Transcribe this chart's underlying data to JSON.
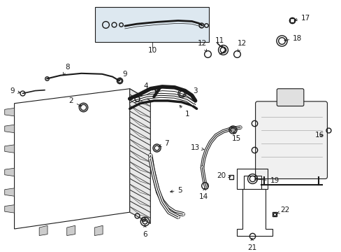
{
  "bg_color": "#ffffff",
  "fig_width": 4.89,
  "fig_height": 3.6,
  "dpi": 100,
  "dark": "#1a1a1a",
  "gray": "#aaaaaa",
  "inset_bg": "#dde8f0",
  "res_bg": "#f0f0f0"
}
